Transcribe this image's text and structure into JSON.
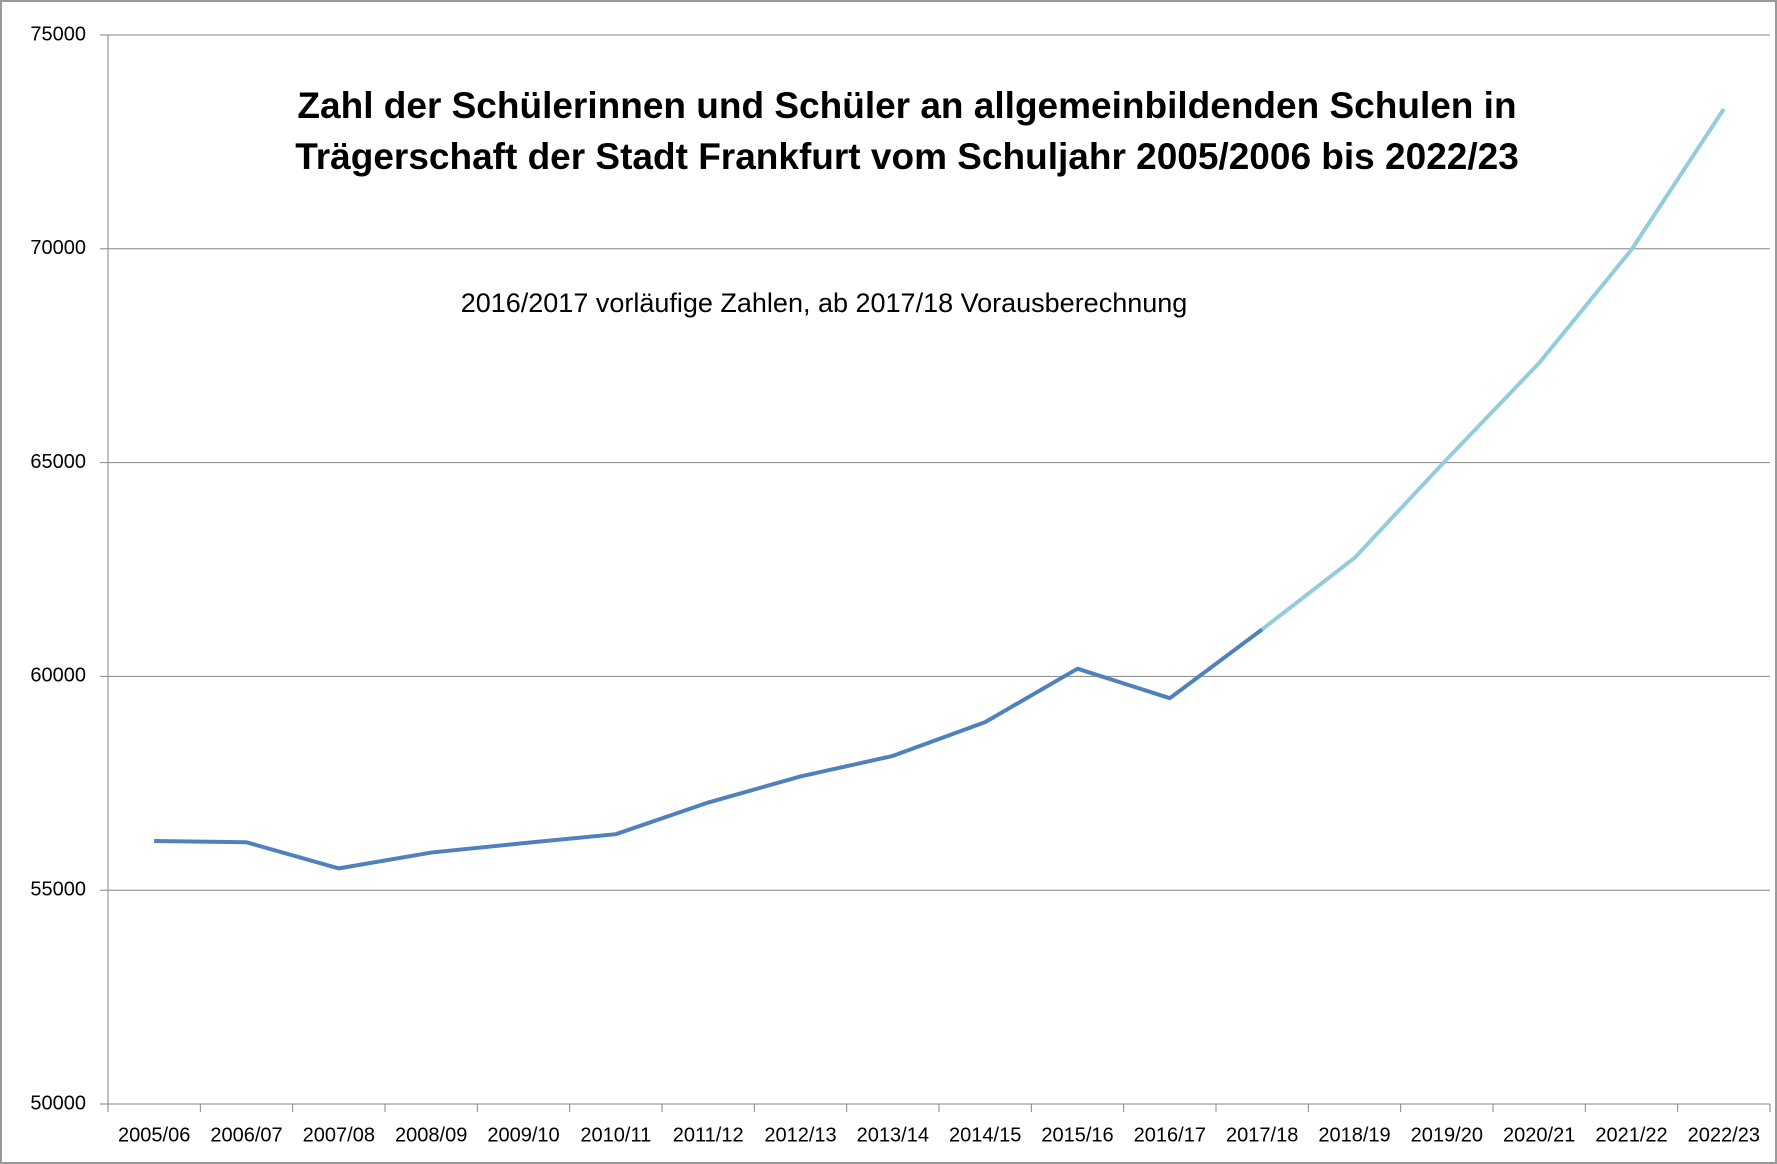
{
  "chart_data": {
    "type": "line",
    "title": [
      "Zahl der Schülerinnen und Schüler an allgemeinbildenden Schulen in",
      "Trägerschaft der Stadt Frankfurt vom Schuljahr 2005/2006 bis 2022/23"
    ],
    "annotation": "2016/2017 vorläufige Zahlen, ab 2017/18 Vorausberechnung",
    "categories": [
      "2005/06",
      "2006/07",
      "2007/08",
      "2008/09",
      "2009/10",
      "2010/11",
      "2011/12",
      "2012/13",
      "2013/14",
      "2014/15",
      "2015/16",
      "2016/17",
      "2017/18",
      "2018/19",
      "2019/20",
      "2020/21",
      "2021/22",
      "2022/23"
    ],
    "series": [
      {
        "color": "#4f81bd",
        "values": [
          56150,
          56120,
          55510,
          55880,
          56100,
          56310,
          57050,
          57660,
          58140,
          58930,
          60180,
          59490,
          61100,
          null,
          null,
          null,
          null,
          null
        ]
      },
      {
        "color": "#93cddd",
        "values": [
          null,
          null,
          null,
          null,
          null,
          null,
          null,
          null,
          null,
          null,
          null,
          null,
          61100,
          62770,
          65080,
          67330,
          69980,
          73270
        ]
      }
    ],
    "ylim": [
      50000,
      75000
    ],
    "yticks": [
      50000,
      55000,
      60000,
      65000,
      70000,
      75000
    ],
    "grid": true
  }
}
